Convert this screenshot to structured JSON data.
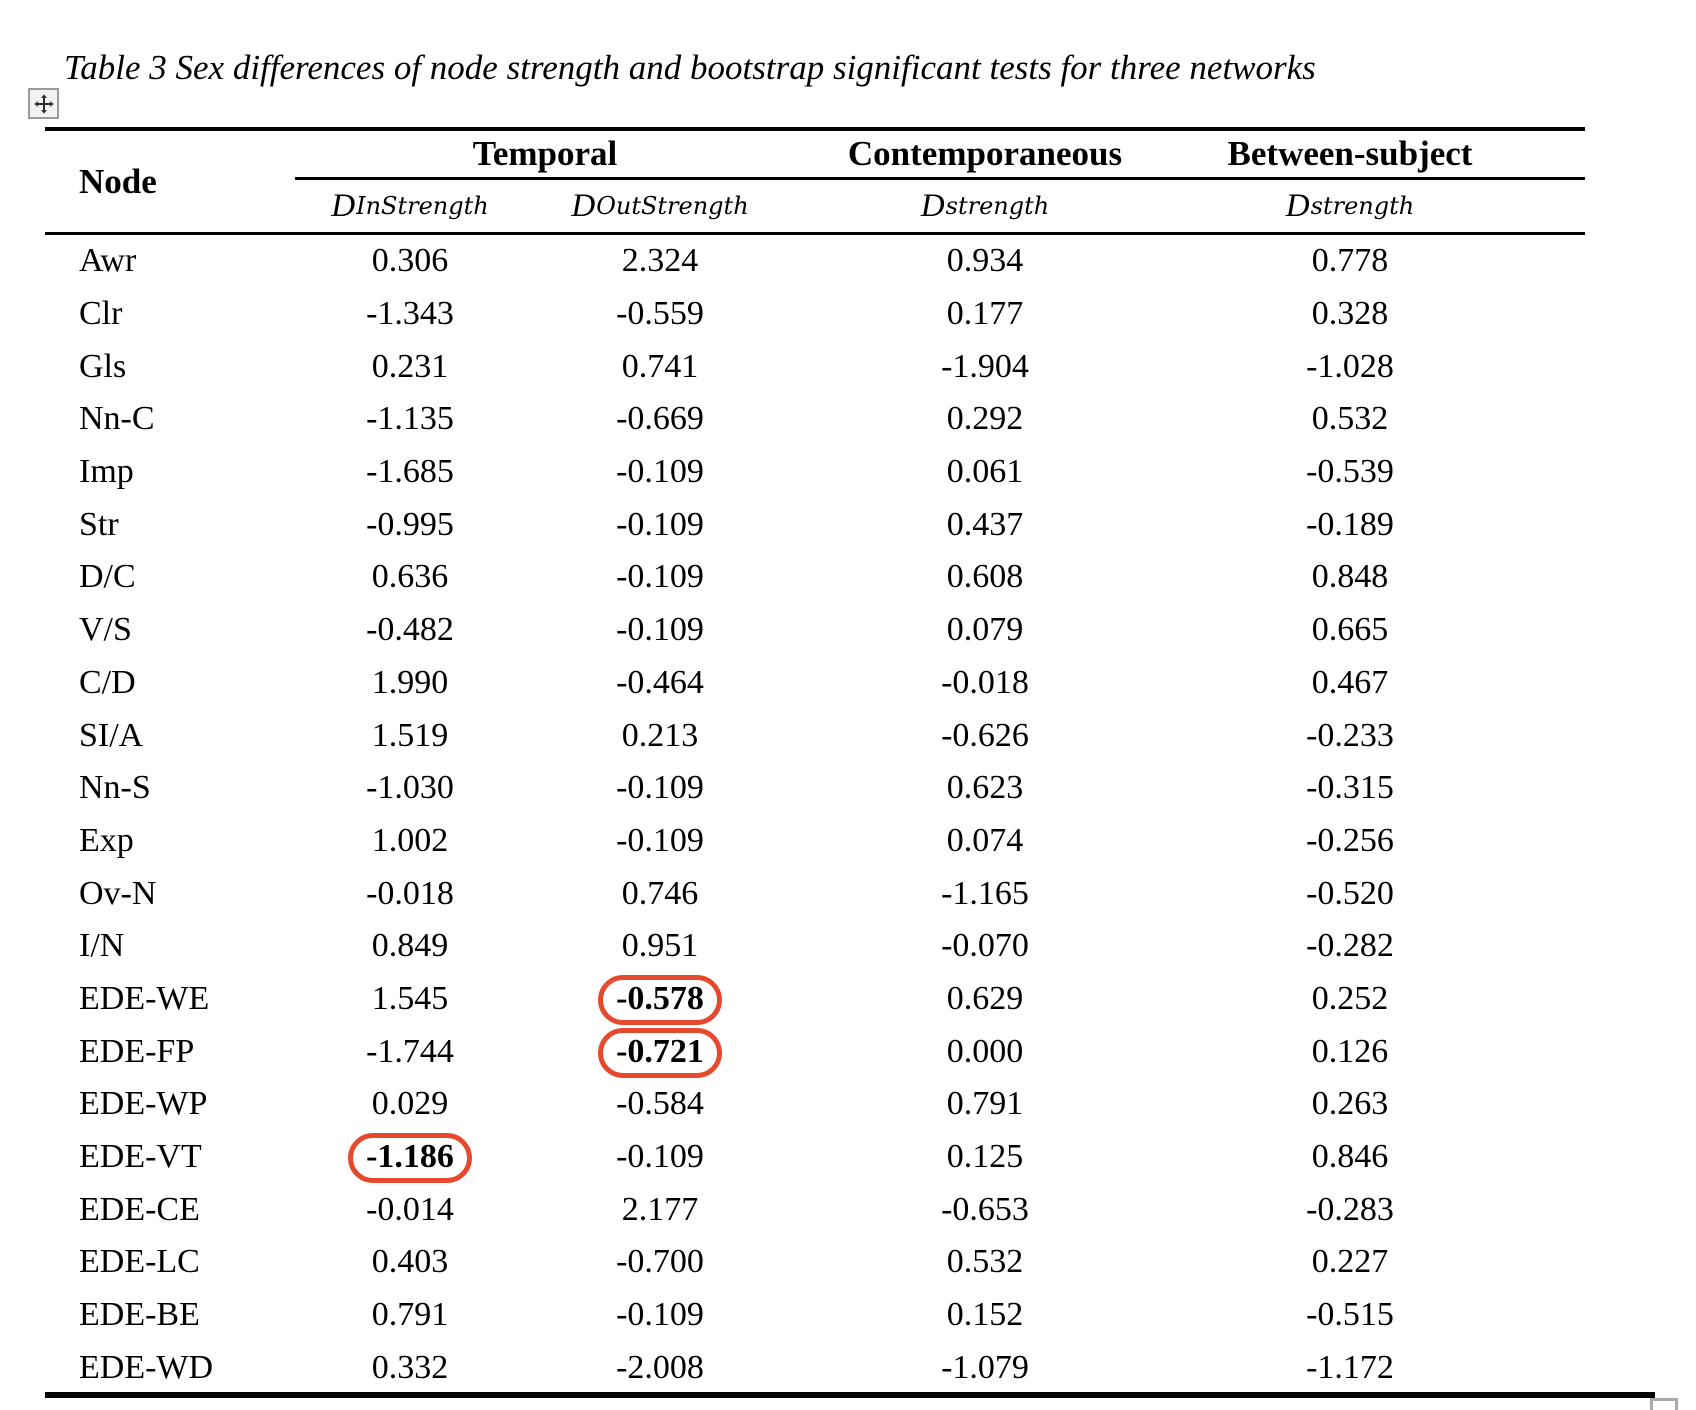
{
  "title": "Table 3 Sex differences of node strength and bootstrap significant tests for three networks",
  "header": {
    "node_label": "Node",
    "groups": [
      {
        "label": "Temporal"
      },
      {
        "label": "Contemporaneous"
      },
      {
        "label": "Between-subject"
      }
    ],
    "subcolumns": [
      {
        "symbol": "D",
        "subscript": "InStrength"
      },
      {
        "symbol": "D",
        "subscript": "OutStrength"
      },
      {
        "symbol": "D",
        "subscript": "strength"
      },
      {
        "symbol": "D",
        "subscript": "strength"
      }
    ]
  },
  "highlight_color": "#e64a2e",
  "icons": {
    "move_handle": "move-arrows-icon",
    "resize_handle": "resize-square-icon"
  },
  "rows": [
    {
      "node": "Awr",
      "values": [
        "0.306",
        "2.324",
        "0.934",
        "0.778"
      ],
      "circled": []
    },
    {
      "node": "Clr",
      "values": [
        "-1.343",
        "-0.559",
        "0.177",
        "0.328"
      ],
      "circled": []
    },
    {
      "node": "Gls",
      "values": [
        "0.231",
        "0.741",
        "-1.904",
        "-1.028"
      ],
      "circled": []
    },
    {
      "node": "Nn-C",
      "values": [
        "-1.135",
        "-0.669",
        "0.292",
        "0.532"
      ],
      "circled": []
    },
    {
      "node": "Imp",
      "values": [
        "-1.685",
        "-0.109",
        "0.061",
        "-0.539"
      ],
      "circled": []
    },
    {
      "node": "Str",
      "values": [
        "-0.995",
        "-0.109",
        "0.437",
        "-0.189"
      ],
      "circled": []
    },
    {
      "node": "D/C",
      "values": [
        "0.636",
        "-0.109",
        "0.608",
        "0.848"
      ],
      "circled": []
    },
    {
      "node": "V/S",
      "values": [
        "-0.482",
        "-0.109",
        "0.079",
        "0.665"
      ],
      "circled": []
    },
    {
      "node": "C/D",
      "values": [
        "1.990",
        "-0.464",
        "-0.018",
        "0.467"
      ],
      "circled": []
    },
    {
      "node": "SI/A",
      "values": [
        "1.519",
        "0.213",
        "-0.626",
        "-0.233"
      ],
      "circled": []
    },
    {
      "node": "Nn-S",
      "values": [
        "-1.030",
        "-0.109",
        "0.623",
        "-0.315"
      ],
      "circled": []
    },
    {
      "node": "Exp",
      "values": [
        "1.002",
        "-0.109",
        "0.074",
        "-0.256"
      ],
      "circled": []
    },
    {
      "node": "Ov-N",
      "values": [
        "-0.018",
        "0.746",
        "-1.165",
        "-0.520"
      ],
      "circled": []
    },
    {
      "node": "I/N",
      "values": [
        "0.849",
        "0.951",
        "-0.070",
        "-0.282"
      ],
      "circled": []
    },
    {
      "node": "EDE-WE",
      "values": [
        "1.545",
        "-0.578",
        "0.629",
        "0.252"
      ],
      "circled": [
        1
      ]
    },
    {
      "node": "EDE-FP",
      "values": [
        "-1.744",
        "-0.721",
        "0.000",
        "0.126"
      ],
      "circled": [
        1
      ]
    },
    {
      "node": "EDE-WP",
      "values": [
        "0.029",
        "-0.584",
        "0.791",
        "0.263"
      ],
      "circled": []
    },
    {
      "node": "EDE-VT",
      "values": [
        "-1.186",
        "-0.109",
        "0.125",
        "0.846"
      ],
      "circled": [
        0
      ]
    },
    {
      "node": "EDE-CE",
      "values": [
        "-0.014",
        "2.177",
        "-0.653",
        "-0.283"
      ],
      "circled": []
    },
    {
      "node": "EDE-LC",
      "values": [
        "0.403",
        "-0.700",
        "0.532",
        "0.227"
      ],
      "circled": []
    },
    {
      "node": "EDE-BE",
      "values": [
        "0.791",
        "-0.109",
        "0.152",
        "-0.515"
      ],
      "circled": []
    },
    {
      "node": "EDE-WD",
      "values": [
        "0.332",
        "-2.008",
        "-1.079",
        "-1.172"
      ],
      "circled": []
    }
  ]
}
